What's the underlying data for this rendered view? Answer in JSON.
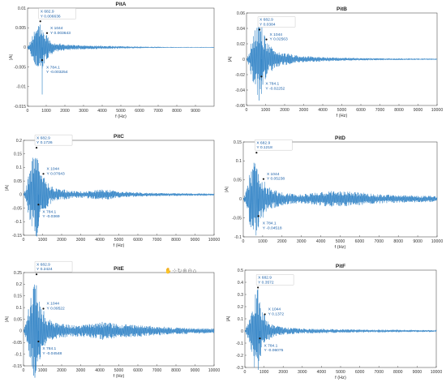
{
  "xlabel": "f (Hz)",
  "ylabel": "|A|",
  "datatip": {
    "x_prefix": "X",
    "y_prefix": "Y"
  },
  "chart_data": [
    {
      "type": "line",
      "title": "PitA",
      "xlim": [
        0,
        9999
      ],
      "ylim": [
        -0.015,
        0.01
      ],
      "xticks": [
        0,
        1000,
        2000,
        3000,
        4000,
        5000,
        6000,
        7000,
        8000,
        9000
      ],
      "yticks": [
        -0.015,
        -0.01,
        -0.005,
        0,
        0.005,
        0.01
      ],
      "ytick_labels": [
        "-0.015",
        "-0.01",
        "-0.005",
        "0",
        "0.005",
        "0.01"
      ],
      "tips": [
        {
          "x": "682.9",
          "y": "0.006636"
        },
        {
          "x": "1044",
          "y": "0.003643"
        },
        {
          "x": "784.1",
          "y": "-0.003254"
        }
      ],
      "envelope": [
        [
          0,
          0.0002
        ],
        [
          150,
          0.0015
        ],
        [
          300,
          0.004
        ],
        [
          500,
          0.005
        ],
        [
          683,
          0.0066
        ],
        [
          784,
          0.006
        ],
        [
          900,
          0.004
        ],
        [
          1044,
          0.0036
        ],
        [
          1200,
          0.002
        ],
        [
          1500,
          0.0012
        ],
        [
          2000,
          0.0008
        ],
        [
          2500,
          0.0006
        ],
        [
          3000,
          0.0005
        ],
        [
          4000,
          0.0004
        ],
        [
          5000,
          0.0003
        ],
        [
          6000,
          0.0002
        ],
        [
          8000,
          0.0001
        ],
        [
          9999,
          0.0001
        ]
      ],
      "spike": {
        "x": 784.1,
        "y": -0.012
      }
    },
    {
      "type": "line",
      "title": "PitB",
      "xlim": [
        0,
        10000
      ],
      "ylim": [
        -0.06,
        0.06
      ],
      "xticks": [
        0,
        1000,
        2000,
        3000,
        4000,
        5000,
        6000,
        7000,
        8000,
        9000,
        10000
      ],
      "yticks": [
        -0.06,
        -0.04,
        -0.02,
        0,
        0.02,
        0.04,
        0.06
      ],
      "ytick_labels": [
        "-0.06",
        "-0.04",
        "-0.02",
        "0",
        "0.02",
        "0.04",
        "0.06"
      ],
      "tips": [
        {
          "x": "682.9",
          "y": "0.0384"
        },
        {
          "x": "1044",
          "y": "0.02563"
        },
        {
          "x": "784.1",
          "y": "-0.02252"
        }
      ],
      "envelope": [
        [
          0,
          0.001
        ],
        [
          150,
          0.01
        ],
        [
          300,
          0.03
        ],
        [
          500,
          0.045
        ],
        [
          683,
          0.055
        ],
        [
          784,
          0.045
        ],
        [
          900,
          0.035
        ],
        [
          1044,
          0.026
        ],
        [
          1200,
          0.018
        ],
        [
          1500,
          0.012
        ],
        [
          2000,
          0.008
        ],
        [
          2500,
          0.006
        ],
        [
          3000,
          0.004
        ],
        [
          4000,
          0.003
        ],
        [
          5000,
          0.002
        ],
        [
          6000,
          0.0015
        ],
        [
          8000,
          0.001
        ],
        [
          10000,
          0.0008
        ]
      ],
      "spike": {
        "x": 784.1,
        "y": -0.045
      }
    },
    {
      "type": "line",
      "title": "PitC",
      "xlim": [
        0,
        10000
      ],
      "ylim": [
        -0.15,
        0.2
      ],
      "xticks": [
        0,
        1000,
        2000,
        3000,
        4000,
        5000,
        6000,
        7000,
        8000,
        9000,
        10000
      ],
      "yticks": [
        -0.15,
        -0.1,
        -0.05,
        0,
        0.05,
        0.1,
        0.15,
        0.2
      ],
      "ytick_labels": [
        "-0.15",
        "-0.1",
        "-0.05",
        "0",
        "0.05",
        "0.1",
        "0.15",
        "0.2"
      ],
      "tips": [
        {
          "x": "682.9",
          "y": "0.1726"
        },
        {
          "x": "1044",
          "y": "0.07643"
        },
        {
          "x": "784.1",
          "y": "-0.0369"
        }
      ],
      "envelope": [
        [
          0,
          0.002
        ],
        [
          150,
          0.03
        ],
        [
          300,
          0.09
        ],
        [
          500,
          0.14
        ],
        [
          683,
          0.172
        ],
        [
          784,
          0.12
        ],
        [
          900,
          0.085
        ],
        [
          1044,
          0.076
        ],
        [
          1200,
          0.05
        ],
        [
          1500,
          0.03
        ],
        [
          2000,
          0.02
        ],
        [
          2500,
          0.015
        ],
        [
          3000,
          0.012
        ],
        [
          3500,
          0.014
        ],
        [
          4000,
          0.02
        ],
        [
          4500,
          0.018
        ],
        [
          5000,
          0.012
        ],
        [
          6000,
          0.008
        ],
        [
          7000,
          0.006
        ],
        [
          8000,
          0.005
        ],
        [
          10000,
          0.004
        ]
      ],
      "spike": {
        "x": 784.1,
        "y": -0.1
      }
    },
    {
      "type": "line",
      "title": "PitD",
      "xlim": [
        0,
        10000
      ],
      "ylim": [
        -0.1,
        0.15
      ],
      "xticks": [
        0,
        1000,
        2000,
        3000,
        4000,
        5000,
        6000,
        7000,
        8000,
        9000,
        10000
      ],
      "yticks": [
        -0.1,
        -0.05,
        0,
        0.05,
        0.1,
        0.15
      ],
      "ytick_labels": [
        "-0.1",
        "-0.05",
        "0",
        "0.05",
        "0.1",
        "0.15"
      ],
      "tips": [
        {
          "x": "682.9",
          "y": "0.1218"
        },
        {
          "x": "1044",
          "y": "0.05238"
        },
        {
          "x": "784.1",
          "y": "-0.04518"
        }
      ],
      "envelope": [
        [
          0,
          0.002
        ],
        [
          150,
          0.02
        ],
        [
          300,
          0.06
        ],
        [
          500,
          0.1
        ],
        [
          683,
          0.12
        ],
        [
          784,
          0.09
        ],
        [
          900,
          0.065
        ],
        [
          1044,
          0.052
        ],
        [
          1200,
          0.035
        ],
        [
          1500,
          0.025
        ],
        [
          2000,
          0.018
        ],
        [
          2500,
          0.014
        ],
        [
          3000,
          0.012
        ],
        [
          4000,
          0.018
        ],
        [
          4500,
          0.022
        ],
        [
          5000,
          0.02
        ],
        [
          6000,
          0.018
        ],
        [
          7000,
          0.012
        ],
        [
          8000,
          0.01
        ],
        [
          10000,
          0.008
        ]
      ],
      "spike": {
        "x": 784.1,
        "y": -0.075
      }
    },
    {
      "type": "line",
      "title": "PitE",
      "xlim": [
        0,
        10000
      ],
      "ylim": [
        -0.15,
        0.25
      ],
      "xticks": [
        0,
        1000,
        2000,
        3000,
        4000,
        5000,
        6000,
        7000,
        8000,
        9000,
        10000
      ],
      "yticks": [
        -0.15,
        -0.1,
        -0.05,
        0,
        0.05,
        0.1,
        0.15,
        0.2,
        0.25
      ],
      "ytick_labels": [
        "-0.15",
        "-0.1",
        "-0.05",
        "0",
        "0.05",
        "0.1",
        "0.15",
        "0.2",
        "0.25"
      ],
      "tips": [
        {
          "x": "682.9",
          "y": "0.2424"
        },
        {
          "x": "1044",
          "y": "0.09522"
        },
        {
          "x": "784.1",
          "y": "-0.04548"
        }
      ],
      "envelope": [
        [
          0,
          0.002
        ],
        [
          150,
          0.04
        ],
        [
          300,
          0.12
        ],
        [
          500,
          0.19
        ],
        [
          683,
          0.24
        ],
        [
          784,
          0.17
        ],
        [
          900,
          0.12
        ],
        [
          1044,
          0.095
        ],
        [
          1200,
          0.06
        ],
        [
          1500,
          0.04
        ],
        [
          2000,
          0.03
        ],
        [
          2500,
          0.025
        ],
        [
          3000,
          0.025
        ],
        [
          3500,
          0.03
        ],
        [
          4000,
          0.04
        ],
        [
          4500,
          0.035
        ],
        [
          5000,
          0.03
        ],
        [
          6000,
          0.025
        ],
        [
          7000,
          0.02
        ],
        [
          8000,
          0.015
        ],
        [
          10000,
          0.01
        ]
      ],
      "spike": {
        "x": 784.1,
        "y": -0.1
      }
    },
    {
      "type": "line",
      "title": "PitF",
      "xlim": [
        0,
        10000
      ],
      "ylim": [
        -0.3,
        0.5
      ],
      "xticks": [
        0,
        1000,
        2000,
        3000,
        4000,
        5000,
        6000,
        7000,
        8000,
        9000,
        10000
      ],
      "yticks": [
        -0.3,
        -0.2,
        -0.1,
        0,
        0.1,
        0.2,
        0.3,
        0.4,
        0.5
      ],
      "ytick_labels": [
        "-0.3",
        "-0.2",
        "-0.1",
        "0",
        "0.1",
        "0.2",
        "0.3",
        "0.4",
        "0.5"
      ],
      "tips": [
        {
          "x": "682.9",
          "y": "0.3572"
        },
        {
          "x": "1044",
          "y": "0.1372"
        },
        {
          "x": "784.1",
          "y": "-0.06075"
        }
      ],
      "envelope": [
        [
          0,
          0.004
        ],
        [
          150,
          0.06
        ],
        [
          300,
          0.18
        ],
        [
          500,
          0.3
        ],
        [
          683,
          0.357
        ],
        [
          784,
          0.25
        ],
        [
          900,
          0.17
        ],
        [
          1044,
          0.137
        ],
        [
          1200,
          0.08
        ],
        [
          1500,
          0.05
        ],
        [
          2000,
          0.03
        ],
        [
          2500,
          0.025
        ],
        [
          3000,
          0.02
        ],
        [
          4000,
          0.018
        ],
        [
          5000,
          0.015
        ],
        [
          6000,
          0.012
        ],
        [
          8000,
          0.01
        ],
        [
          10000,
          0.008
        ]
      ],
      "spike": {
        "x": 784.1,
        "y": -0.2
      }
    }
  ],
  "toolbar_icons": [
    "pan-icon",
    "insert-datatip-icon",
    "rotate-icon",
    "zoom-in-icon",
    "zoom-out-icon",
    "home-icon"
  ]
}
